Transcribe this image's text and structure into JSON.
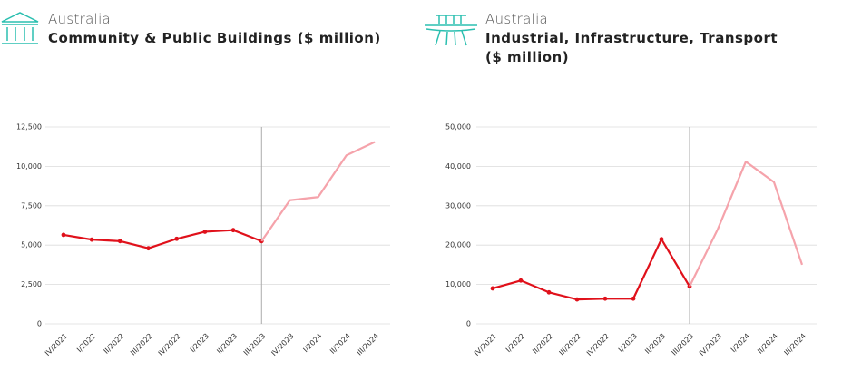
{
  "chart_data": [
    {
      "type": "line",
      "subtitle": "Australia",
      "title": "Community & Public Buildings ($ million)",
      "categories": [
        "IV/2021",
        "I/2022",
        "II/2022",
        "III/2022",
        "IV/2022",
        "I/2023",
        "II/2023",
        "III/2023",
        "IV/2023",
        "I/2024",
        "II/2024",
        "III/2024"
      ],
      "series": [
        {
          "color": "#e0111b",
          "markers": true,
          "values": [
            5650,
            5350,
            5250,
            4800,
            5400,
            5850,
            5950,
            5250,
            null,
            null,
            null,
            null
          ]
        },
        {
          "color": "#f5a3ab",
          "markers": false,
          "values": [
            null,
            null,
            null,
            null,
            null,
            null,
            null,
            5250,
            7850,
            8050,
            10700,
            11550
          ]
        }
      ],
      "ylim": [
        0,
        12500
      ],
      "yticks": [
        0,
        {
          "value": 2500,
          "label": "2,500"
        },
        {
          "value": 5000,
          "label": "5,000"
        },
        {
          "value": 7500,
          "label": "7,500"
        },
        {
          "value": 10000,
          "label": "10,000"
        },
        {
          "value": 12500,
          "label": "12,500"
        }
      ],
      "grid": true
    },
    {
      "type": "line",
      "subtitle": "Australia",
      "title": "Industrial, Infrastructure, Transport ($ million)",
      "categories": [
        "IV/2021",
        "I/2022",
        "II/2022",
        "III/2022",
        "IV/2022",
        "I/2023",
        "II/2023",
        "III/2023",
        "IV/2023",
        "I/2024",
        "II/2024",
        "III/2024"
      ],
      "series": [
        {
          "color": "#e0111b",
          "markers": true,
          "values": [
            9000,
            11000,
            8000,
            6200,
            6400,
            6400,
            21500,
            9500,
            null,
            null,
            null,
            null
          ]
        },
        {
          "color": "#f5a3ab",
          "markers": false,
          "values": [
            null,
            null,
            null,
            null,
            null,
            null,
            null,
            9500,
            24000,
            41200,
            36000,
            15000
          ]
        }
      ],
      "ylim": [
        0,
        50000
      ],
      "yticks": [
        0,
        {
          "value": 10000,
          "label": "10,000"
        },
        {
          "value": 20000,
          "label": "20,000"
        },
        {
          "value": 30000,
          "label": "30,000"
        },
        {
          "value": 40000,
          "label": "40,000"
        },
        {
          "value": 50000,
          "label": "50,000"
        }
      ],
      "grid": true
    }
  ]
}
